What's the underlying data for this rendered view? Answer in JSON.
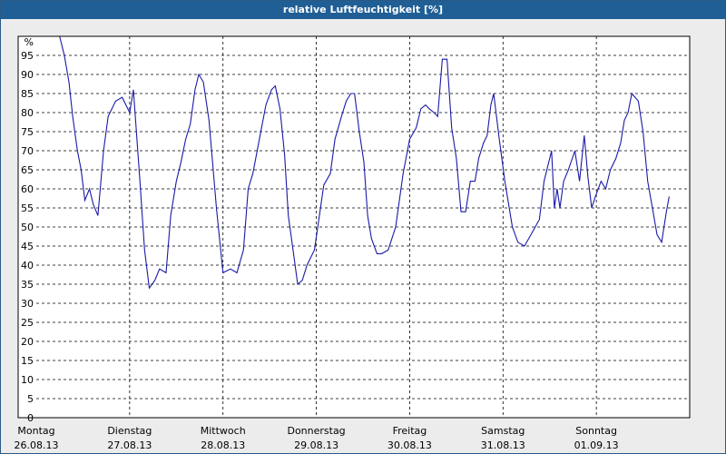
{
  "window": {
    "title": "relative Luftfeuchtigkeit [%]"
  },
  "chart_data": {
    "type": "line",
    "title": "relative Luftfeuchtigkeit [%]",
    "ylabel": "%",
    "ylim": [
      0,
      100
    ],
    "yticks": [
      0,
      5,
      10,
      15,
      20,
      25,
      30,
      35,
      40,
      45,
      50,
      55,
      60,
      65,
      70,
      75,
      80,
      85,
      90,
      95
    ],
    "xlim": [
      0,
      7
    ],
    "x_unit": "days since Monday 26.08.13 00:00",
    "x_labels": [
      {
        "day": "Montag",
        "date": "26.08.13"
      },
      {
        "day": "Dienstag",
        "date": "27.08.13"
      },
      {
        "day": "Mittwoch",
        "date": "28.08.13"
      },
      {
        "day": "Donnerstag",
        "date": "29.08.13"
      },
      {
        "day": "Freitag",
        "date": "30.08.13"
      },
      {
        "day": "Samstag",
        "date": "31.08.13"
      },
      {
        "day": "Sonntag",
        "date": "01.09.13"
      }
    ],
    "grid": true,
    "line_color": "#1a1aa8",
    "series": [
      {
        "name": "",
        "x": [
          0.25,
          0.3,
          0.35,
          0.39,
          0.44,
          0.48,
          0.52,
          0.57,
          0.61,
          0.66,
          0.72,
          0.77,
          0.85,
          0.92,
          1.0,
          1.04,
          1.11,
          1.16,
          1.21,
          1.27,
          1.32,
          1.39,
          1.44,
          1.5,
          1.55,
          1.6,
          1.65,
          1.7,
          1.74,
          1.79,
          1.85,
          1.93,
          2.0,
          2.08,
          2.15,
          2.22,
          2.27,
          2.32,
          2.39,
          2.46,
          2.52,
          2.56,
          2.61,
          2.66,
          2.7,
          2.75,
          2.8,
          2.85,
          2.9,
          2.98,
          3.08,
          3.15,
          3.2,
          3.27,
          3.32,
          3.37,
          3.41,
          3.46,
          3.51,
          3.55,
          3.59,
          3.65,
          3.7,
          3.77,
          3.85,
          3.93,
          4.0,
          4.07,
          4.12,
          4.17,
          4.21,
          4.26,
          4.3,
          4.35,
          4.4,
          4.45,
          4.5,
          4.55,
          4.6,
          4.65,
          4.7,
          4.74,
          4.79,
          4.83,
          4.87,
          4.9,
          4.96,
          5.02,
          5.1,
          5.16,
          5.23,
          5.3,
          5.39,
          5.44,
          5.48,
          5.52,
          5.55,
          5.58,
          5.61,
          5.65,
          5.7,
          5.77,
          5.82,
          5.87,
          5.91,
          5.95,
          5.99,
          6.05,
          6.1,
          6.15,
          6.21,
          6.26,
          6.3,
          6.34,
          6.38,
          6.45,
          6.5,
          6.55,
          6.6,
          6.65,
          6.7,
          6.75,
          6.78
        ],
        "y": [
          100,
          95,
          88,
          79,
          70,
          65,
          57,
          60,
          56,
          53,
          70,
          79,
          83,
          84,
          80,
          86,
          62,
          44,
          34,
          36,
          39,
          38,
          53,
          62,
          67,
          73,
          77,
          86,
          90,
          88,
          78,
          55,
          38,
          39,
          38,
          44,
          60,
          64,
          73,
          82,
          86,
          87,
          81,
          69,
          53,
          44,
          35,
          36,
          40,
          44,
          61,
          64,
          73,
          79,
          83,
          85,
          85,
          75,
          67,
          53,
          47,
          43,
          43,
          44,
          50,
          64,
          73,
          76,
          81,
          82,
          81,
          80,
          79,
          94,
          94,
          76,
          68,
          54,
          54,
          62,
          62,
          68,
          72,
          74,
          82,
          85,
          73,
          62,
          50,
          46,
          45,
          48,
          52,
          62,
          66,
          70,
          55,
          60,
          55,
          62,
          65,
          70,
          62,
          74,
          63,
          55,
          58,
          62,
          60,
          65,
          68,
          72,
          78,
          80,
          85,
          83,
          75,
          62,
          55,
          48,
          46,
          54,
          58
        ]
      }
    ]
  }
}
